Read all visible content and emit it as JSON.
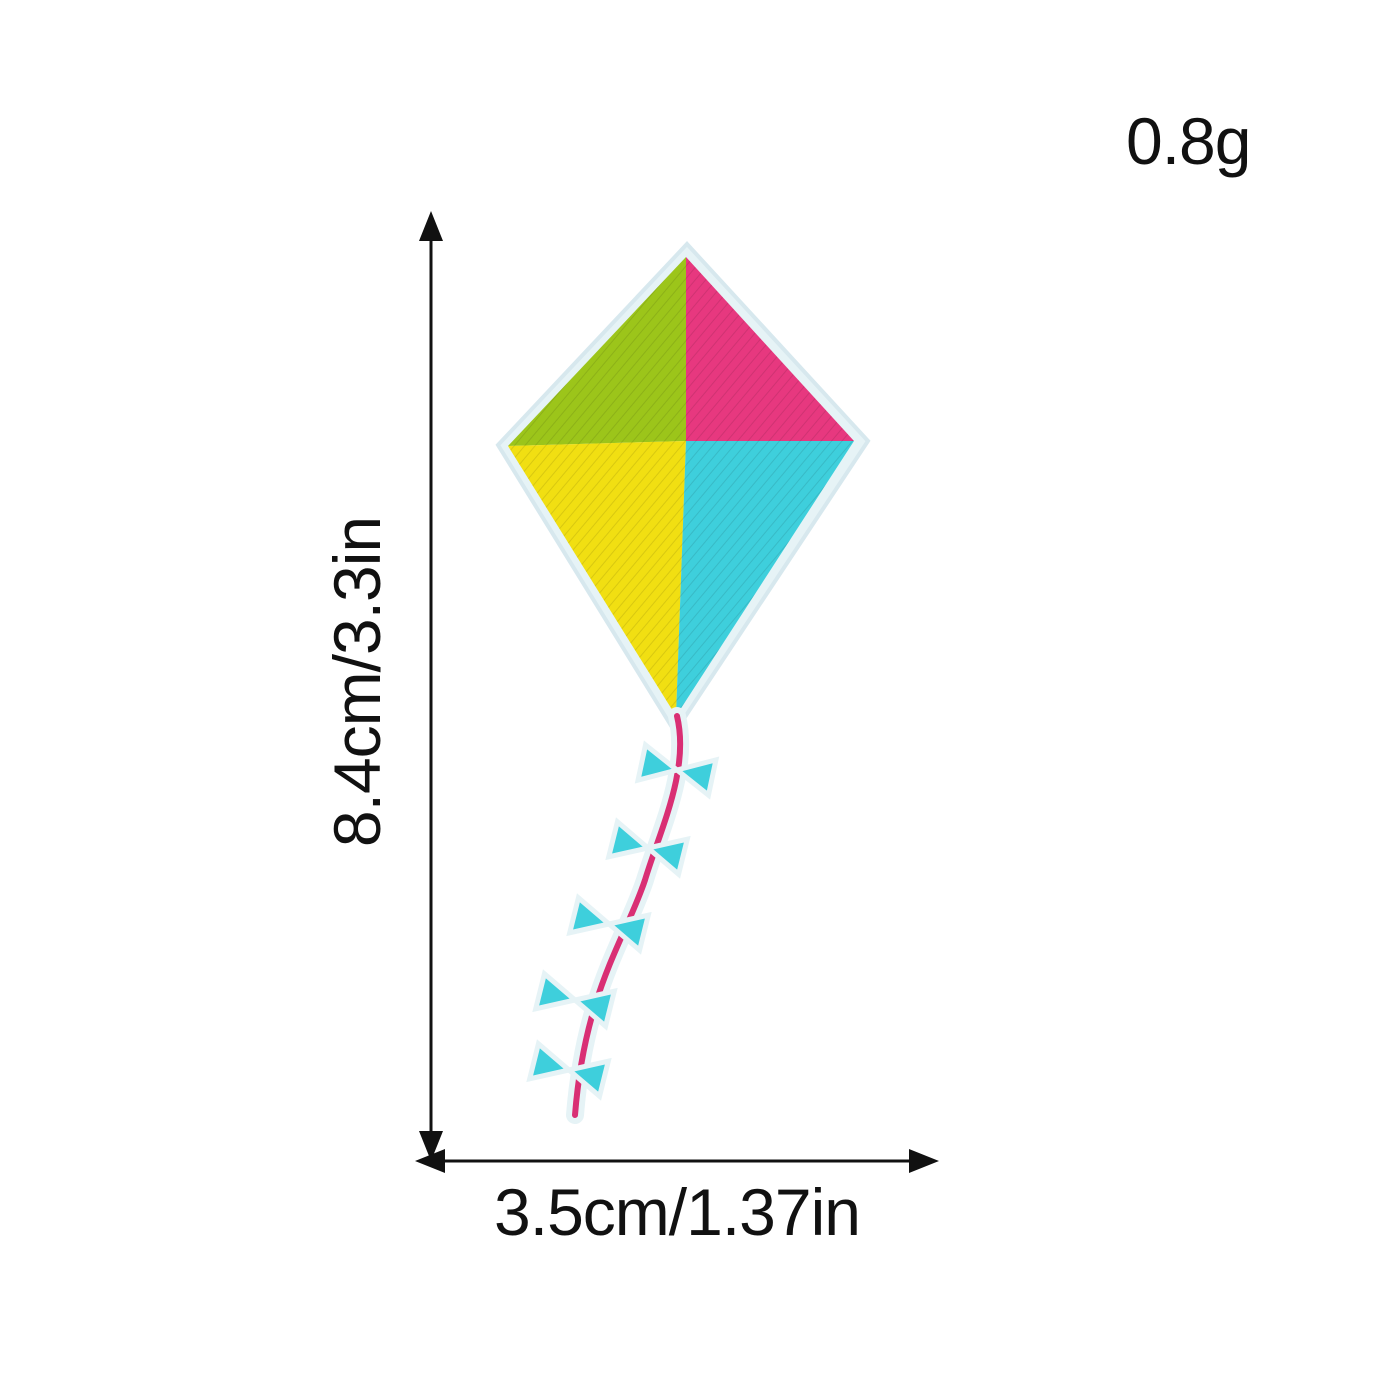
{
  "product": {
    "weight": "0.8g",
    "height": "8.4cm/3.3in",
    "width": "3.5cm/1.37in",
    "image": "kite-embroidered-patch"
  },
  "colors": {
    "kite_top_left": "#9cc51a",
    "kite_top_right": "#e7387f",
    "kite_bottom_left": "#f1df12",
    "kite_bottom_right": "#3ecfdc",
    "tail_string": "#d92f74",
    "bows": "#3ecfdc",
    "patch_border": "#e6f3f6",
    "dimension_lines": "#111111"
  }
}
